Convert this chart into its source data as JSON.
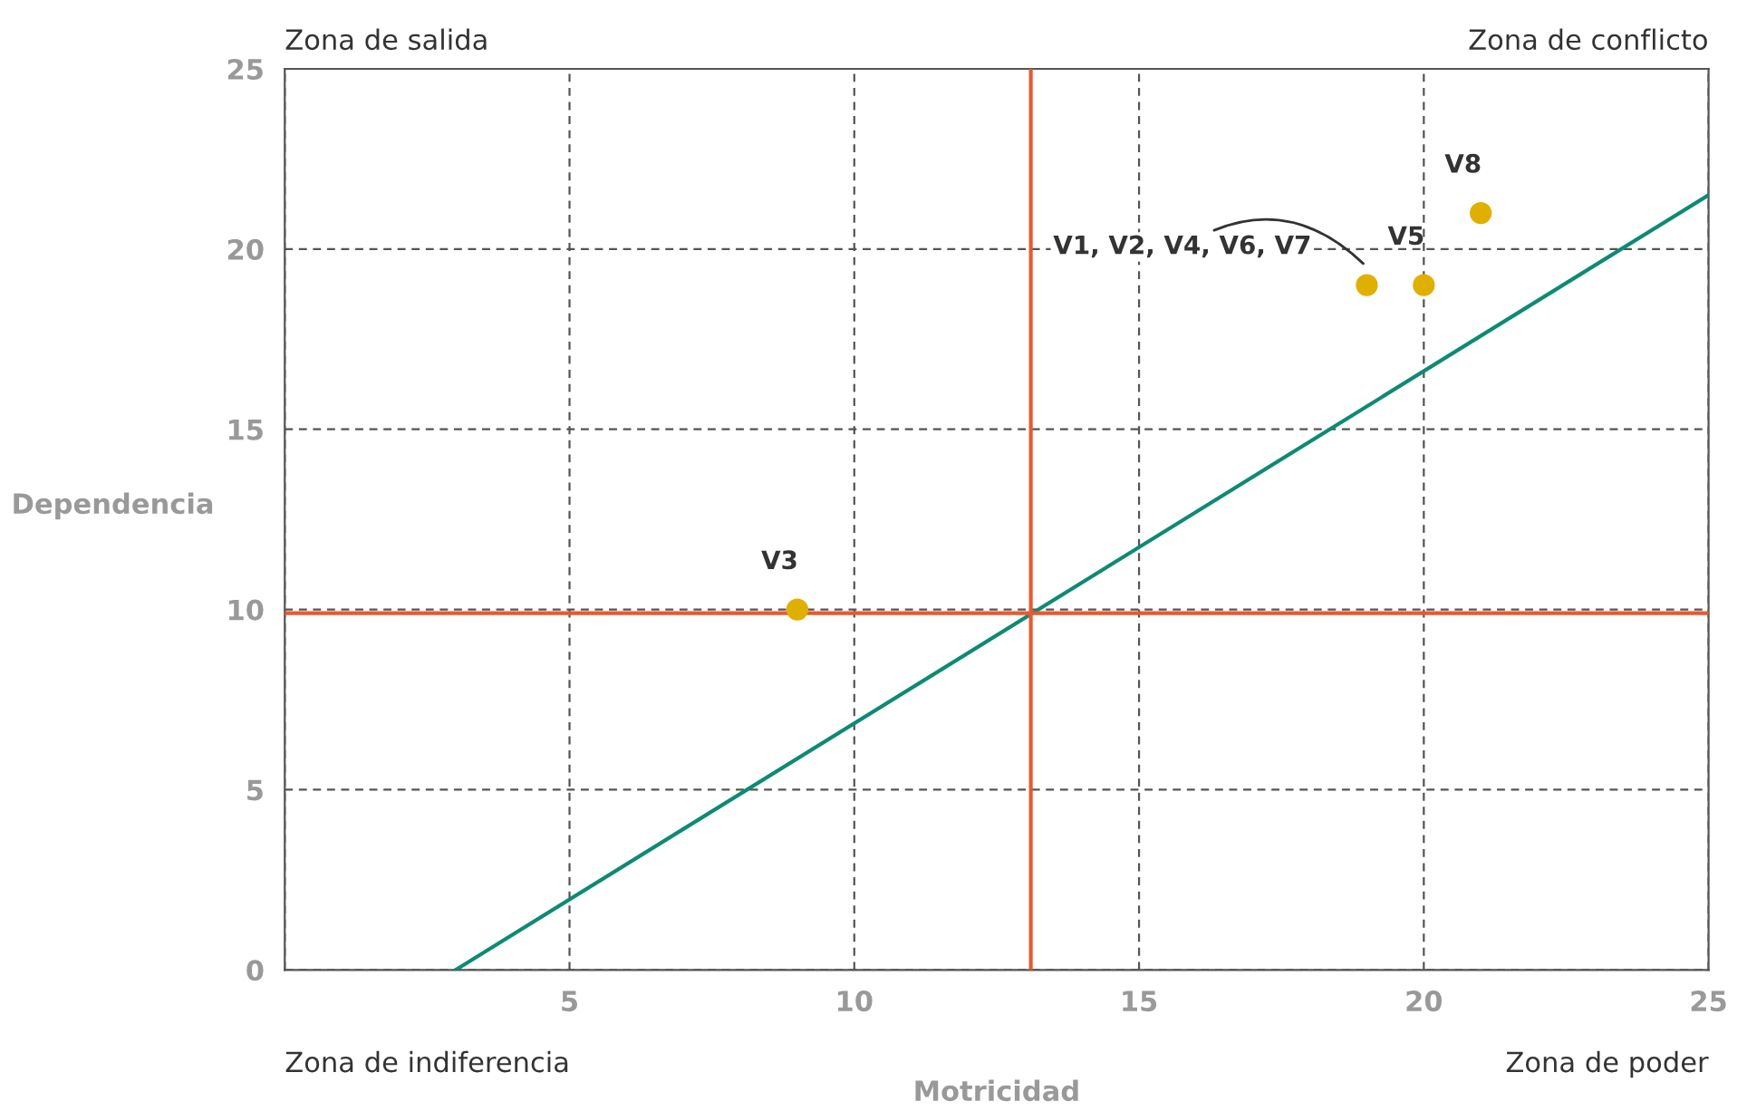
{
  "chart_data": {
    "type": "scatter",
    "xlabel": "Motricidad",
    "ylabel": "Dependencia",
    "xlim": [
      0,
      25
    ],
    "ylim": [
      0,
      25
    ],
    "xticks": [
      {
        "value": 0,
        "label": null
      },
      5,
      10,
      15,
      20,
      25
    ],
    "yticks": [
      0,
      5,
      10,
      15,
      20,
      25
    ],
    "grid": true,
    "series": [
      {
        "marker": "circle",
        "color": "#e0b000",
        "x": [
          9,
          19,
          20,
          21
        ],
        "values": [
          10,
          19,
          19,
          21
        ]
      },
      {
        "type": "line",
        "color": "#0e8a74",
        "x": [
          3,
          25
        ],
        "values": [
          0,
          21.5
        ]
      }
    ],
    "ref_lines": [
      {
        "axis": "x",
        "value": 13.1,
        "color": "#e8592f"
      },
      {
        "axis": "y",
        "value": 9.9,
        "color": "#e8592f"
      }
    ],
    "annotations": [
      "Zona de salida",
      "Zona de conflicto",
      "Zona de indiferencia",
      "Zona de poder",
      {
        "text": "V3",
        "x": 9,
        "y": 10
      },
      {
        "text": "V1, V2, V4, V6, V7",
        "x": 19,
        "y": 19
      },
      {
        "text": "V5",
        "x": 20,
        "y": 19
      },
      {
        "text": "V8",
        "x": 21,
        "y": 21
      }
    ]
  }
}
